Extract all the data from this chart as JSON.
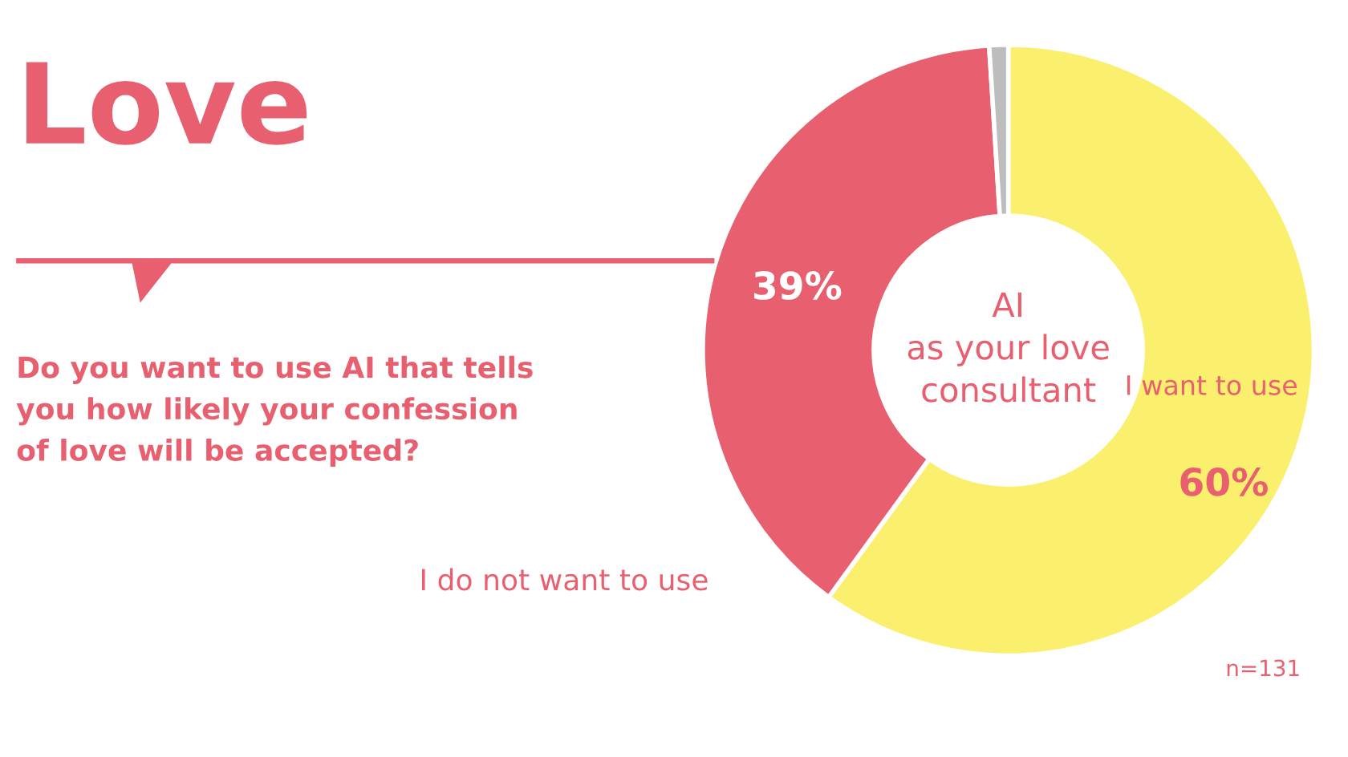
{
  "chart_data": {
    "type": "donut",
    "title": "Love",
    "subtitle": "Do you want to use AI that tells\nyou how likely your confession\nof love will be accepted?",
    "categories": [
      "I want to use",
      "I do not want to use",
      null
    ],
    "values": [
      60,
      39,
      1
    ],
    "colors": [
      "#fbef6e",
      "#e8606f",
      "#bdbdbd"
    ],
    "value_labels": [
      "60%",
      "39%",
      null
    ],
    "annotations": [
      "AI\nas your love\nconsultant",
      "n=131"
    ]
  }
}
